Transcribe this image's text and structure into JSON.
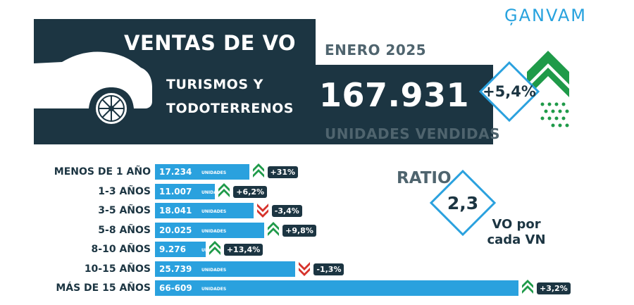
{
  "logo": "ĢANVAM",
  "header": {
    "title": "VENTAS DE VO",
    "period": "ENERO 2025",
    "category_line1": "TURISMOS Y",
    "category_line2": "TODOTERRENOS",
    "total": "167.931",
    "total_label": "UNIDADES VENDIDAS",
    "total_change": "+5,4%"
  },
  "ratio": {
    "label": "RATIO",
    "value": "2,3",
    "note_line1": "VO por",
    "note_line2": "cada VN"
  },
  "colors": {
    "dark": "#1c3542",
    "bar": "#2aa1de",
    "up": "#1f9a49",
    "down": "#d6322b"
  },
  "chart_data": {
    "type": "bar",
    "orientation": "horizontal",
    "categories": [
      "MENOS DE 1 AÑO",
      "1-3 AÑOS",
      "3-5 AÑOS",
      "5-8 AÑOS",
      "8-10 AÑOS",
      "10-15 AÑOS",
      "MÁS DE 15 AÑOS"
    ],
    "values": [
      17234,
      11007,
      18041,
      20025,
      9276,
      25739,
      66609
    ],
    "value_labels": [
      "17.234",
      "11.007",
      "18.041",
      "20.025",
      "9.276",
      "25.739",
      "66-609"
    ],
    "unit_label": "UNIDADES",
    "changes": [
      "+31%",
      "+6,2%",
      "-3,4%",
      "+9,8%",
      "+13,4%",
      "-1,3%",
      "+3,2%"
    ],
    "directions": [
      "up",
      "up",
      "down",
      "up",
      "up",
      "down",
      "up"
    ],
    "xlim": [
      0,
      66609
    ]
  }
}
